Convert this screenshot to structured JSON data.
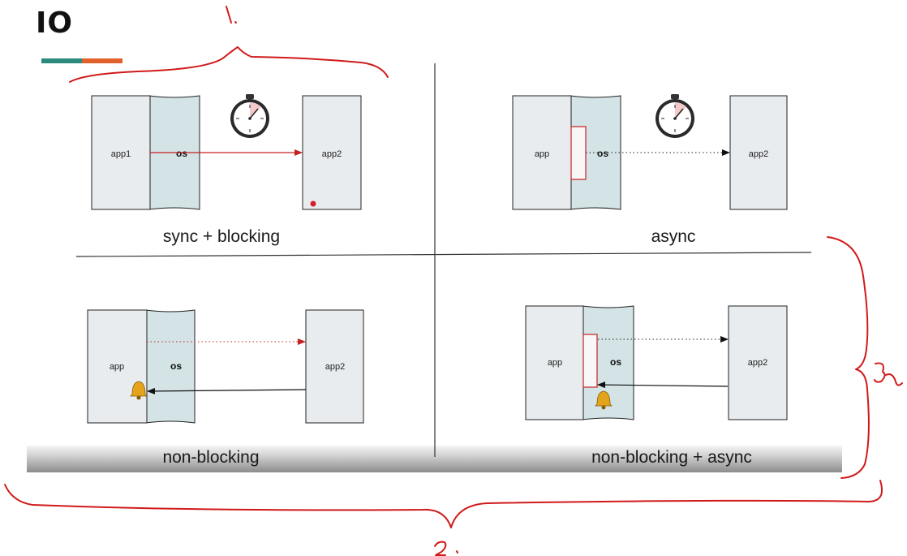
{
  "slide": {
    "title": "IO",
    "accent_colors": [
      "#2b8a7e",
      "#e0622a"
    ]
  },
  "panels": [
    {
      "id": "sync-blocking",
      "caption": "sync + blocking",
      "left_label": "app1",
      "os_label": "os",
      "right_label": "app2",
      "icon": "stopwatch-icon"
    },
    {
      "id": "async",
      "caption": "async",
      "left_label": "app",
      "os_label": "os",
      "right_label": "app2",
      "icon": "stopwatch-icon"
    },
    {
      "id": "non-blocking",
      "caption": "non-blocking",
      "left_label": "app",
      "os_label": "os",
      "right_label": "app2",
      "icon": "bell-icon"
    },
    {
      "id": "non-blocking-async",
      "caption": "non-blocking + async",
      "left_label": "app",
      "os_label": "os",
      "right_label": "app2",
      "icon": "bell-icon"
    }
  ],
  "annotations": {
    "color": "#d11a1a",
    "marks": [
      "1.",
      "2.",
      "3."
    ]
  },
  "colors": {
    "app_box": "#e8ecef",
    "os_region": "#d3e3e6",
    "arrow_red": "#c62020",
    "arrow_black": "#111111"
  }
}
